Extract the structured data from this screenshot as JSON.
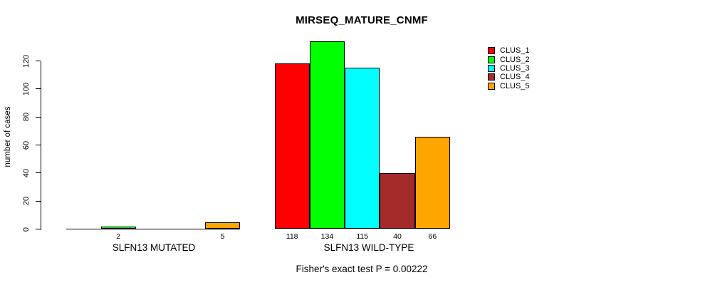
{
  "title": "MIRSEQ_MATURE_CNMF",
  "caption": "Fisher's exact test P = 0.00222",
  "colors": {
    "background": "#FFFFFF",
    "axis": "#000000",
    "text": "#000000"
  },
  "chart_data": {
    "type": "bar",
    "title": "MIRSEQ_MATURE_CNMF",
    "xlabel": "",
    "ylabel": "number of cases",
    "ylim": [
      0,
      120
    ],
    "yticks": [
      0,
      20,
      40,
      60,
      80,
      100,
      120
    ],
    "grid": false,
    "legend_position": "top-right",
    "bar_borders": "#000000",
    "categories": [
      "SLFN13 MUTATED",
      "SLFN13 WILD-TYPE"
    ],
    "series": [
      {
        "name": "CLUS_1",
        "color": "#FF0000",
        "values": [
          0,
          118
        ]
      },
      {
        "name": "CLUS_2",
        "color": "#00FF00",
        "values": [
          2,
          134
        ]
      },
      {
        "name": "CLUS_3",
        "color": "#00FFFF",
        "values": [
          0,
          115
        ]
      },
      {
        "name": "CLUS_4",
        "color": "#A52A2A",
        "values": [
          0,
          40
        ]
      },
      {
        "name": "CLUS_5",
        "color": "#FFA500",
        "values": [
          5,
          66
        ]
      }
    ],
    "bar_value_labels_shown": true,
    "annotation": "Fisher's exact test P = 0.00222"
  }
}
